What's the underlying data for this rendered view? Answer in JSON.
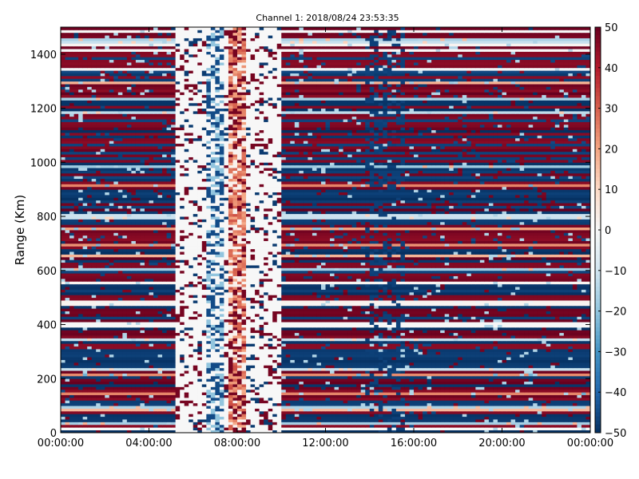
{
  "chart_data": {
    "type": "heatmap",
    "title": "Channel 1: 2018/08/24 23:53:35",
    "xlabel": "",
    "ylabel": "Range (Km)",
    "x_ticks": [
      "00:00:00",
      "04:00:00",
      "08:00:00",
      "12:00:00",
      "16:00:00",
      "20:00:00",
      "00:00:00"
    ],
    "x_range_hours": [
      0,
      24
    ],
    "y_ticks": [
      0,
      200,
      400,
      600,
      800,
      1000,
      1200,
      1400
    ],
    "ylim": [
      0,
      1500
    ],
    "colorbar": {
      "ticks": [
        50,
        40,
        30,
        20,
        10,
        0,
        -10,
        -20,
        -30,
        -40,
        -50
      ],
      "range": [
        -50,
        50
      ],
      "colormap": "RdBu_r",
      "colors": {
        "low": "#053061",
        "mid": "#f7f7f7",
        "high": "#67001f"
      }
    },
    "data_gap_hours": [
      5.1,
      10.1
    ],
    "grid": false
  }
}
